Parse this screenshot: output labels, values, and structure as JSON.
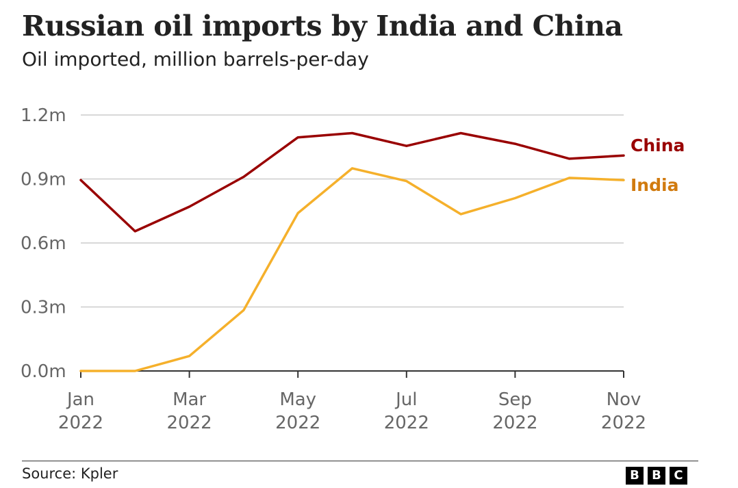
{
  "chart_data": {
    "type": "line",
    "title": "Russian oil imports by India and China",
    "subtitle": "Oil imported, million barrels-per-day",
    "x": [
      "Jan 2022",
      "Feb 2022",
      "Mar 2022",
      "Apr 2022",
      "May 2022",
      "Jun 2022",
      "Jul 2022",
      "Aug 2022",
      "Sep 2022",
      "Oct 2022",
      "Nov 2022"
    ],
    "x_tick_labels": [
      {
        "month": "Jan",
        "year": "2022"
      },
      {
        "month": "Mar",
        "year": "2022"
      },
      {
        "month": "May",
        "year": "2022"
      },
      {
        "month": "Jul",
        "year": "2022"
      },
      {
        "month": "Sep",
        "year": "2022"
      },
      {
        "month": "Nov",
        "year": "2022"
      }
    ],
    "y_ticks": [
      {
        "value": 0.0,
        "label": "0.0m"
      },
      {
        "value": 0.3,
        "label": "0.3m"
      },
      {
        "value": 0.6,
        "label": "0.6m"
      },
      {
        "value": 0.9,
        "label": "0.9m"
      },
      {
        "value": 1.2,
        "label": "1.2m"
      }
    ],
    "ylim": [
      0,
      1.2
    ],
    "grid": true,
    "legend": "direct labels at right end of lines",
    "series": [
      {
        "name": "China",
        "color": "#990000",
        "values": [
          0.895,
          0.655,
          0.77,
          0.91,
          1.095,
          1.115,
          1.055,
          1.115,
          1.065,
          0.995,
          1.01
        ]
      },
      {
        "name": "India",
        "color": "#F5B02B",
        "label_color": "#D17B0F",
        "values": [
          0.0,
          0.0,
          0.07,
          0.285,
          0.74,
          0.95,
          0.89,
          0.735,
          0.81,
          0.905,
          0.895
        ]
      }
    ]
  },
  "footer": {
    "source": "Source: Kpler",
    "logo_letters": [
      "B",
      "B",
      "C"
    ]
  }
}
